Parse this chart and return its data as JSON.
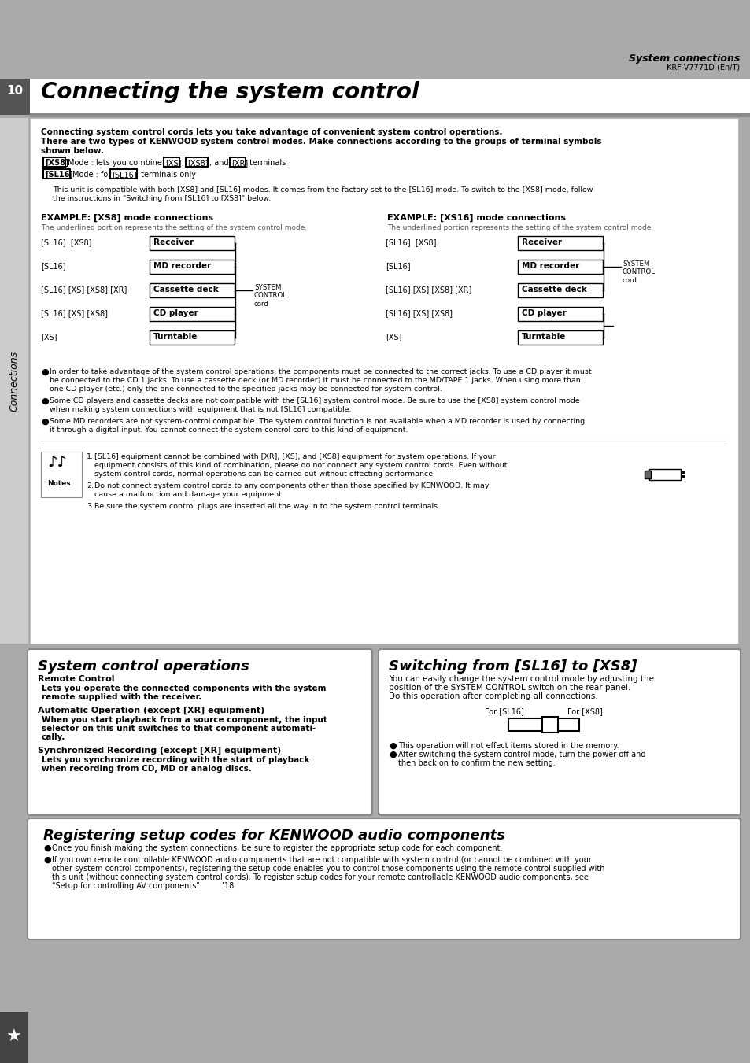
{
  "bg_color": "#aaaaaa",
  "title": "Connecting the system control",
  "page_num": "10",
  "section_label": "System connections",
  "model": "KRF-V7771D (En/T)",
  "intro_bold": [
    "Connecting system control cords lets you take advantage of convenient system control operations.",
    "There are two types of KENWOOD system control modes. Make connections according to the groups of terminal symbols",
    "shown below."
  ],
  "unit_note": [
    "This unit is compatible with both [XS8] and [SL16] modes. It comes from the factory set to the [SL16] mode. To switch to the [XS8] mode, follow",
    "the instructions in \"Switching from [SL16] to [XS8]\" below."
  ],
  "ex_xs8_title": "EXAMPLE: [XS8] mode connections",
  "ex_xs8_sub": "The underlined portion represents the setting of the system control mode.",
  "ex_sl16_title": "EXAMPLE: [XS16] mode connections",
  "ex_sl16_sub": "The underlined portion represents the setting of the system control mode.",
  "components": [
    "Receiver",
    "MD recorder",
    "Cassette deck",
    "CD player",
    "Turntable"
  ],
  "left_labels": [
    "[SL16]  [XS8]",
    "[SL16]",
    "[SL16] [XS] [XS8] [XR]",
    "[SL16] [XS] [XS8]",
    "[XS]"
  ],
  "right_labels": [
    "[SL16]  [XS8]",
    "[SL16]",
    "[SL16] [XS] [XS8] [XR]",
    "[SL16] [XS] [XS8]",
    "[XS]"
  ],
  "system_control_cord": "SYSTEM\nCONTROL\ncord",
  "bullets": [
    [
      "In order to take advantage of the system control operations, the components must be connected to the correct jacks. To use a CD player it must",
      "be connected to the CD 1 jacks. To use a cassette deck (or MD recorder) it must be connected to the MD/TAPE 1 jacks. When using more than",
      "one CD player (etc.) only the one connected to the specified jacks may be connected for system control."
    ],
    [
      "Some CD players and cassette decks are not compatible with the [SL16] system control mode. Be sure to use the [XS8] system control mode",
      "when making system connections with equipment that is not [SL16] compatible."
    ],
    [
      "Some MD recorders are not system-control compatible. The system control function is not available when a MD recorder is used by connecting",
      "it through a digital input. You cannot connect the system control cord to this kind of equipment."
    ]
  ],
  "notes": [
    [
      "[SL16] equipment cannot be combined with [XR], [XS], and [XS8] equipment for system operations. If your",
      "equipment consists of this kind of combination, please do not connect any system control cords. Even without",
      "system control cords, normal operations can be carried out without effecting performance."
    ],
    [
      "Do not connect system control cords to any components other than those specified by KENWOOD. It may",
      "cause a malfunction and damage your equipment."
    ],
    [
      "Be sure the system control plugs are inserted all the way in to the system control terminals."
    ]
  ],
  "sco_title": "System control operations",
  "sco_remote_title": "Remote Control",
  "sco_remote_body": [
    "Lets you operate the connected components with the system",
    "remote supplied with the receiver."
  ],
  "sco_auto_title": "Automatic Operation (except [XR] equipment)",
  "sco_auto_body": [
    "When you start playback from a source component, the input",
    "selector on this unit switches to that component automati-",
    "cally."
  ],
  "sco_sync_title": "Synchronized Recording (except [XR] equipment)",
  "sco_sync_body": [
    "Lets you synchronize recording with the start of playback",
    "when recording from CD, MD or analog discs."
  ],
  "sw_title": "Switching from [SL16] to [XS8]",
  "sw_body": [
    "You can easily change the system control mode by adjusting the",
    "position of the SYSTEM CONTROL switch on the rear panel.",
    "Do this operation after completing all connections."
  ],
  "sw_label_left": "For [SL16]",
  "sw_label_right": "For [XS8]",
  "sw_bullets": [
    [
      "This operation will not effect items stored in the memory."
    ],
    [
      "After switching the system control mode, turn the power off and",
      "then back on to confirm the new setting."
    ]
  ],
  "reg_title": "Registering setup codes for KENWOOD audio components",
  "reg_bullets": [
    [
      "Once you finish making the system connections, be sure to register the appropriate setup code for each component."
    ],
    [
      "If you own remote controllable KENWOOD audio components that are not compatible with system control (or cannot be combined with your",
      "other system control components), registering the setup code enables you to control those components using the remote control supplied with",
      "this unit (without connecting system control cords). To register setup codes for your remote controllable KENWOOD audio components, see",
      "\"Setup for controlling AV components\".        ’18"
    ]
  ]
}
